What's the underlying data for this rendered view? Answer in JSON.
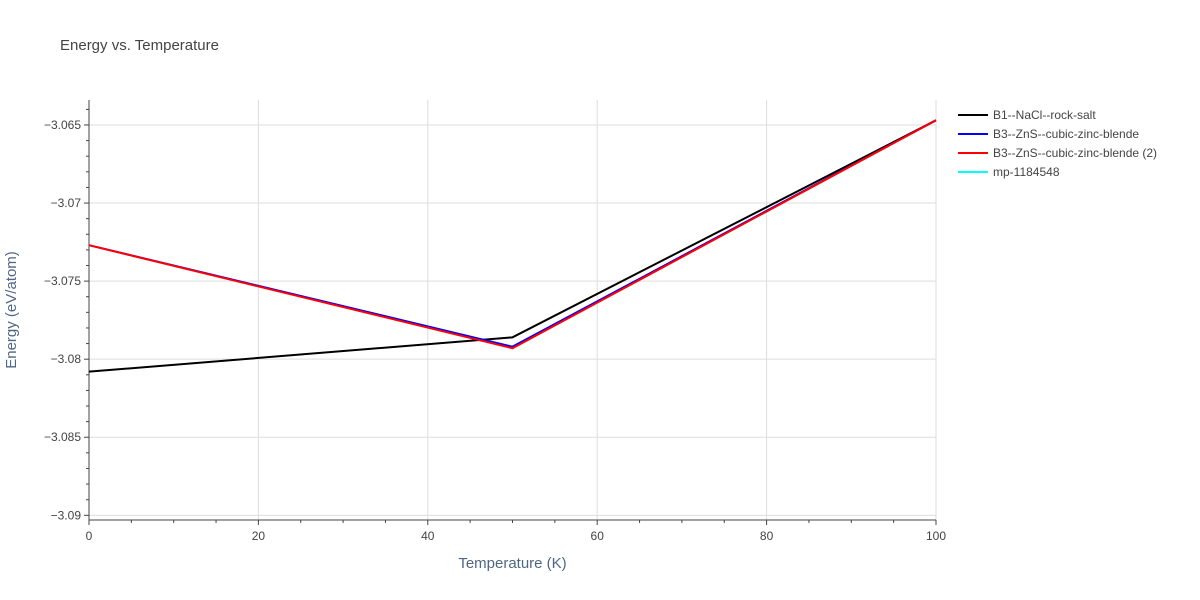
{
  "chart_data": {
    "type": "line",
    "title": "Energy vs. Temperature",
    "xlabel": "Temperature (K)",
    "ylabel": "Energy (eV/atom)",
    "xlim": [
      0,
      100
    ],
    "ylim": [
      -3.0903,
      -3.0634
    ],
    "x_ticks": [
      0,
      20,
      40,
      60,
      80,
      100
    ],
    "x_tick_labels": [
      "0",
      "20",
      "40",
      "60",
      "80",
      "100"
    ],
    "y_ticks": [
      -3.065,
      -3.07,
      -3.075,
      -3.08,
      -3.085,
      -3.09
    ],
    "y_tick_labels": [
      "−3.065",
      "−3.07",
      "−3.075",
      "−3.08",
      "−3.085",
      "−3.09"
    ],
    "grid": true,
    "legend_position": "right",
    "series": [
      {
        "name": "B1--NaCl--rock-salt",
        "color": "#000000",
        "x": [
          0,
          50,
          100
        ],
        "y": [
          -3.0808,
          -3.0786,
          -3.0647
        ]
      },
      {
        "name": "B3--ZnS--cubic-zinc-blende",
        "color": "#0000ff",
        "x": [
          0,
          50,
          100
        ],
        "y": [
          -3.0727,
          -3.0792,
          -3.0647
        ]
      },
      {
        "name": "B3--ZnS--cubic-zinc-blende (2)",
        "color": "#ff0000",
        "x": [
          0,
          50,
          100
        ],
        "y": [
          -3.0727,
          -3.0793,
          -3.0647
        ]
      },
      {
        "name": "mp-1184548",
        "color": "#00ffff",
        "x": [],
        "y": []
      }
    ]
  }
}
